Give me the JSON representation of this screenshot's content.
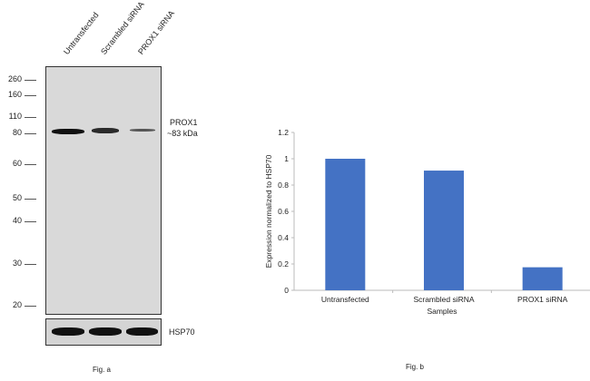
{
  "fig_a": {
    "lanes": [
      "Untransfected",
      "Scrambled siRNA",
      "PROX1 siRNA"
    ],
    "markers": [
      "260",
      "160",
      "110",
      "80",
      "60",
      "50",
      "40",
      "30",
      "20"
    ],
    "target_label": "PROX1",
    "target_size": "~83 kDa",
    "loading_control": "HSP70",
    "caption": "Fig. a"
  },
  "fig_b": {
    "caption": "Fig. b"
  },
  "chart_data": {
    "type": "bar",
    "categories": [
      "Untransfected",
      "Scrambled siRNA",
      "PROX1 siRNA"
    ],
    "values": [
      1.0,
      0.91,
      0.175
    ],
    "title": "",
    "xlabel": "Samples",
    "ylabel": "Expression  normalized to HSP70",
    "ylim": [
      0,
      1.2
    ],
    "yticks": [
      "0",
      "0.2",
      "0.4",
      "0.6",
      "0.8",
      "1",
      "1.2"
    ],
    "color": "#4472c4",
    "grid": false
  }
}
